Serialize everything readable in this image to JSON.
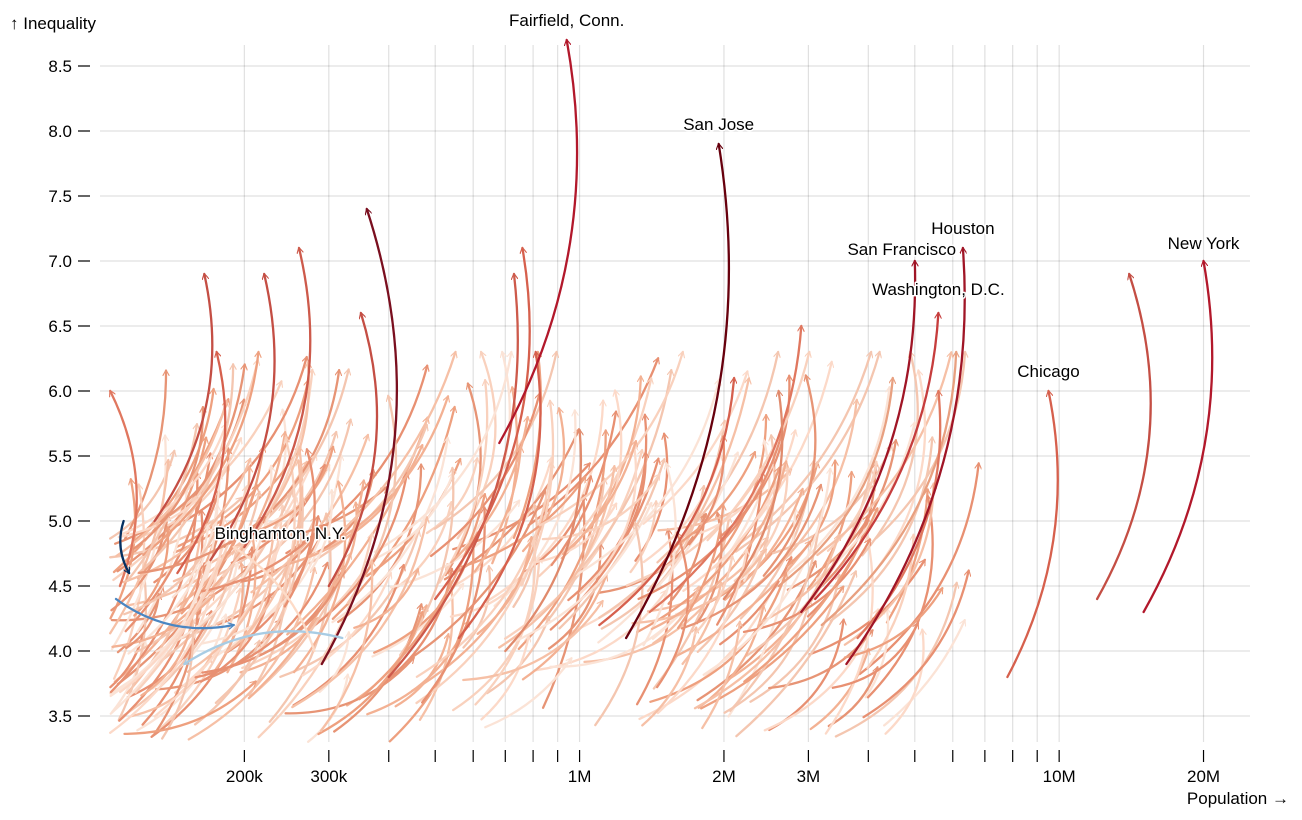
{
  "chart_data": {
    "type": "scatter",
    "description_style": "connected arrow scatter (metro areas moving from 1980 to 2015)",
    "x_scale": "log",
    "xlim": [
      100000,
      25000000
    ],
    "ylim": [
      3.3,
      8.7
    ],
    "xlabel": "Population →",
    "ylabel": "↑ Inequality",
    "x_ticks": [
      200000,
      300000,
      400000,
      500000,
      600000,
      700000,
      800000,
      900000,
      1000000,
      2000000,
      3000000,
      4000000,
      5000000,
      6000000,
      7000000,
      8000000,
      9000000,
      10000000,
      20000000
    ],
    "x_tick_labels": {
      "200000": "200k",
      "300000": "300k",
      "1000000": "1M",
      "2000000": "2M",
      "3000000": "3M",
      "10000000": "10M",
      "20000000": "20M"
    },
    "y_ticks": [
      3.5,
      4.0,
      4.5,
      5.0,
      5.5,
      6.0,
      6.5,
      7.0,
      7.5,
      8.0,
      8.5
    ],
    "y_tick_labels": [
      "3.5",
      "4.0",
      "4.5",
      "5.0",
      "5.5",
      "6.0",
      "6.5",
      "7.0",
      "7.5",
      "8.0",
      "8.5"
    ],
    "grid": true,
    "color_scheme": "diverging red-blue by change in inequality",
    "colors": {
      "strong_up": "#67000d",
      "up": "#b2182b",
      "mid_up": "#d6604d",
      "mild_up": "#f4a582",
      "flat": "#fddbc7",
      "down": "#92c5de",
      "strong_down": "#2166ac",
      "very_down": "#053061"
    },
    "labeled_series": [
      {
        "label": "New York",
        "x1": 15000000,
        "y1": 4.3,
        "x2": 20000000,
        "y2": 7.0,
        "color": "#b2182b"
      },
      {
        "label": "Houston",
        "x1": 3600000,
        "y1": 3.9,
        "x2": 6300000,
        "y2": 7.1,
        "color": "#a01526"
      },
      {
        "label": "San Francisco",
        "x1": 2900000,
        "y1": 4.3,
        "x2": 5000000,
        "y2": 7.0,
        "color": "#a01526"
      },
      {
        "label": "Washington, D.C.",
        "x1": 3100000,
        "y1": 4.4,
        "x2": 5600000,
        "y2": 6.6,
        "color": "#c63d3d"
      },
      {
        "label": "Chicago",
        "x1": 7800000,
        "y1": 3.8,
        "x2": 9500000,
        "y2": 6.0,
        "color": "#d6604d"
      },
      {
        "label": "San Jose",
        "x1": 1250000,
        "y1": 4.1,
        "x2": 1950000,
        "y2": 7.9,
        "color": "#67000d"
      },
      {
        "label": "Fairfield, Conn.",
        "x1": 680000,
        "y1": 5.6,
        "x2": 940000,
        "y2": 8.7,
        "color": "#b2182b"
      },
      {
        "label": "Binghamton, N.Y.",
        "x1": 280000,
        "y1": 4.0,
        "x2": 190000,
        "y2": 4.8,
        "color": "#fddbc7"
      }
    ],
    "series": [
      {
        "x1": 130000,
        "y1": 5.0,
        "x2": 165000,
        "y2": 6.9,
        "color": "#c44e44"
      },
      {
        "x1": 145000,
        "y1": 4.6,
        "x2": 175000,
        "y2": 6.3,
        "color": "#d6604d"
      },
      {
        "x1": 170000,
        "y1": 4.7,
        "x2": 220000,
        "y2": 6.9,
        "color": "#c44e44"
      },
      {
        "x1": 200000,
        "y1": 4.8,
        "x2": 260000,
        "y2": 7.1,
        "color": "#cd5a4b"
      },
      {
        "x1": 290000,
        "y1": 3.9,
        "x2": 360000,
        "y2": 7.4,
        "color": "#7a0f1f"
      },
      {
        "x1": 300000,
        "y1": 4.5,
        "x2": 350000,
        "y2": 6.6,
        "color": "#c44e44"
      },
      {
        "x1": 400000,
        "y1": 3.8,
        "x2": 730000,
        "y2": 6.9,
        "color": "#cd5a4b"
      },
      {
        "x1": 500000,
        "y1": 4.4,
        "x2": 760000,
        "y2": 7.1,
        "color": "#d6604d"
      },
      {
        "x1": 560000,
        "y1": 4.1,
        "x2": 810000,
        "y2": 6.3,
        "color": "#d6604d"
      },
      {
        "x1": 700000,
        "y1": 4.0,
        "x2": 1000000,
        "y2": 5.7,
        "color": "#e08a6c"
      },
      {
        "x1": 1100000,
        "y1": 4.2,
        "x2": 2100000,
        "y2": 6.1,
        "color": "#d6604d"
      },
      {
        "x1": 1400000,
        "y1": 4.3,
        "x2": 2900000,
        "y2": 6.5,
        "color": "#e0775f"
      },
      {
        "x1": 2000000,
        "y1": 4.4,
        "x2": 2600000,
        "y2": 6.0,
        "color": "#e08a6c"
      },
      {
        "x1": 2600000,
        "y1": 4.5,
        "x2": 4500000,
        "y2": 6.1,
        "color": "#e8a080"
      },
      {
        "x1": 3200000,
        "y1": 4.2,
        "x2": 6100000,
        "y2": 6.3,
        "color": "#e8a080"
      },
      {
        "x1": 3800000,
        "y1": 4.1,
        "x2": 5600000,
        "y2": 6.0,
        "color": "#e0775f"
      },
      {
        "x1": 12000000,
        "y1": 4.4,
        "x2": 14000000,
        "y2": 6.9,
        "color": "#c44e44"
      },
      {
        "x1": 110000,
        "y1": 4.5,
        "x2": 105000,
        "y2": 6.0,
        "color": "#e0775f"
      },
      {
        "x1": 112000,
        "y1": 5.0,
        "x2": 115000,
        "y2": 4.6,
        "color": "#053061"
      },
      {
        "x1": 108000,
        "y1": 4.4,
        "x2": 190000,
        "y2": 4.2,
        "color": "#4b86c2"
      },
      {
        "x1": 320000,
        "y1": 4.1,
        "x2": 150000,
        "y2": 3.9,
        "color": "#a8cce4"
      }
    ],
    "background_series_count": 330
  }
}
